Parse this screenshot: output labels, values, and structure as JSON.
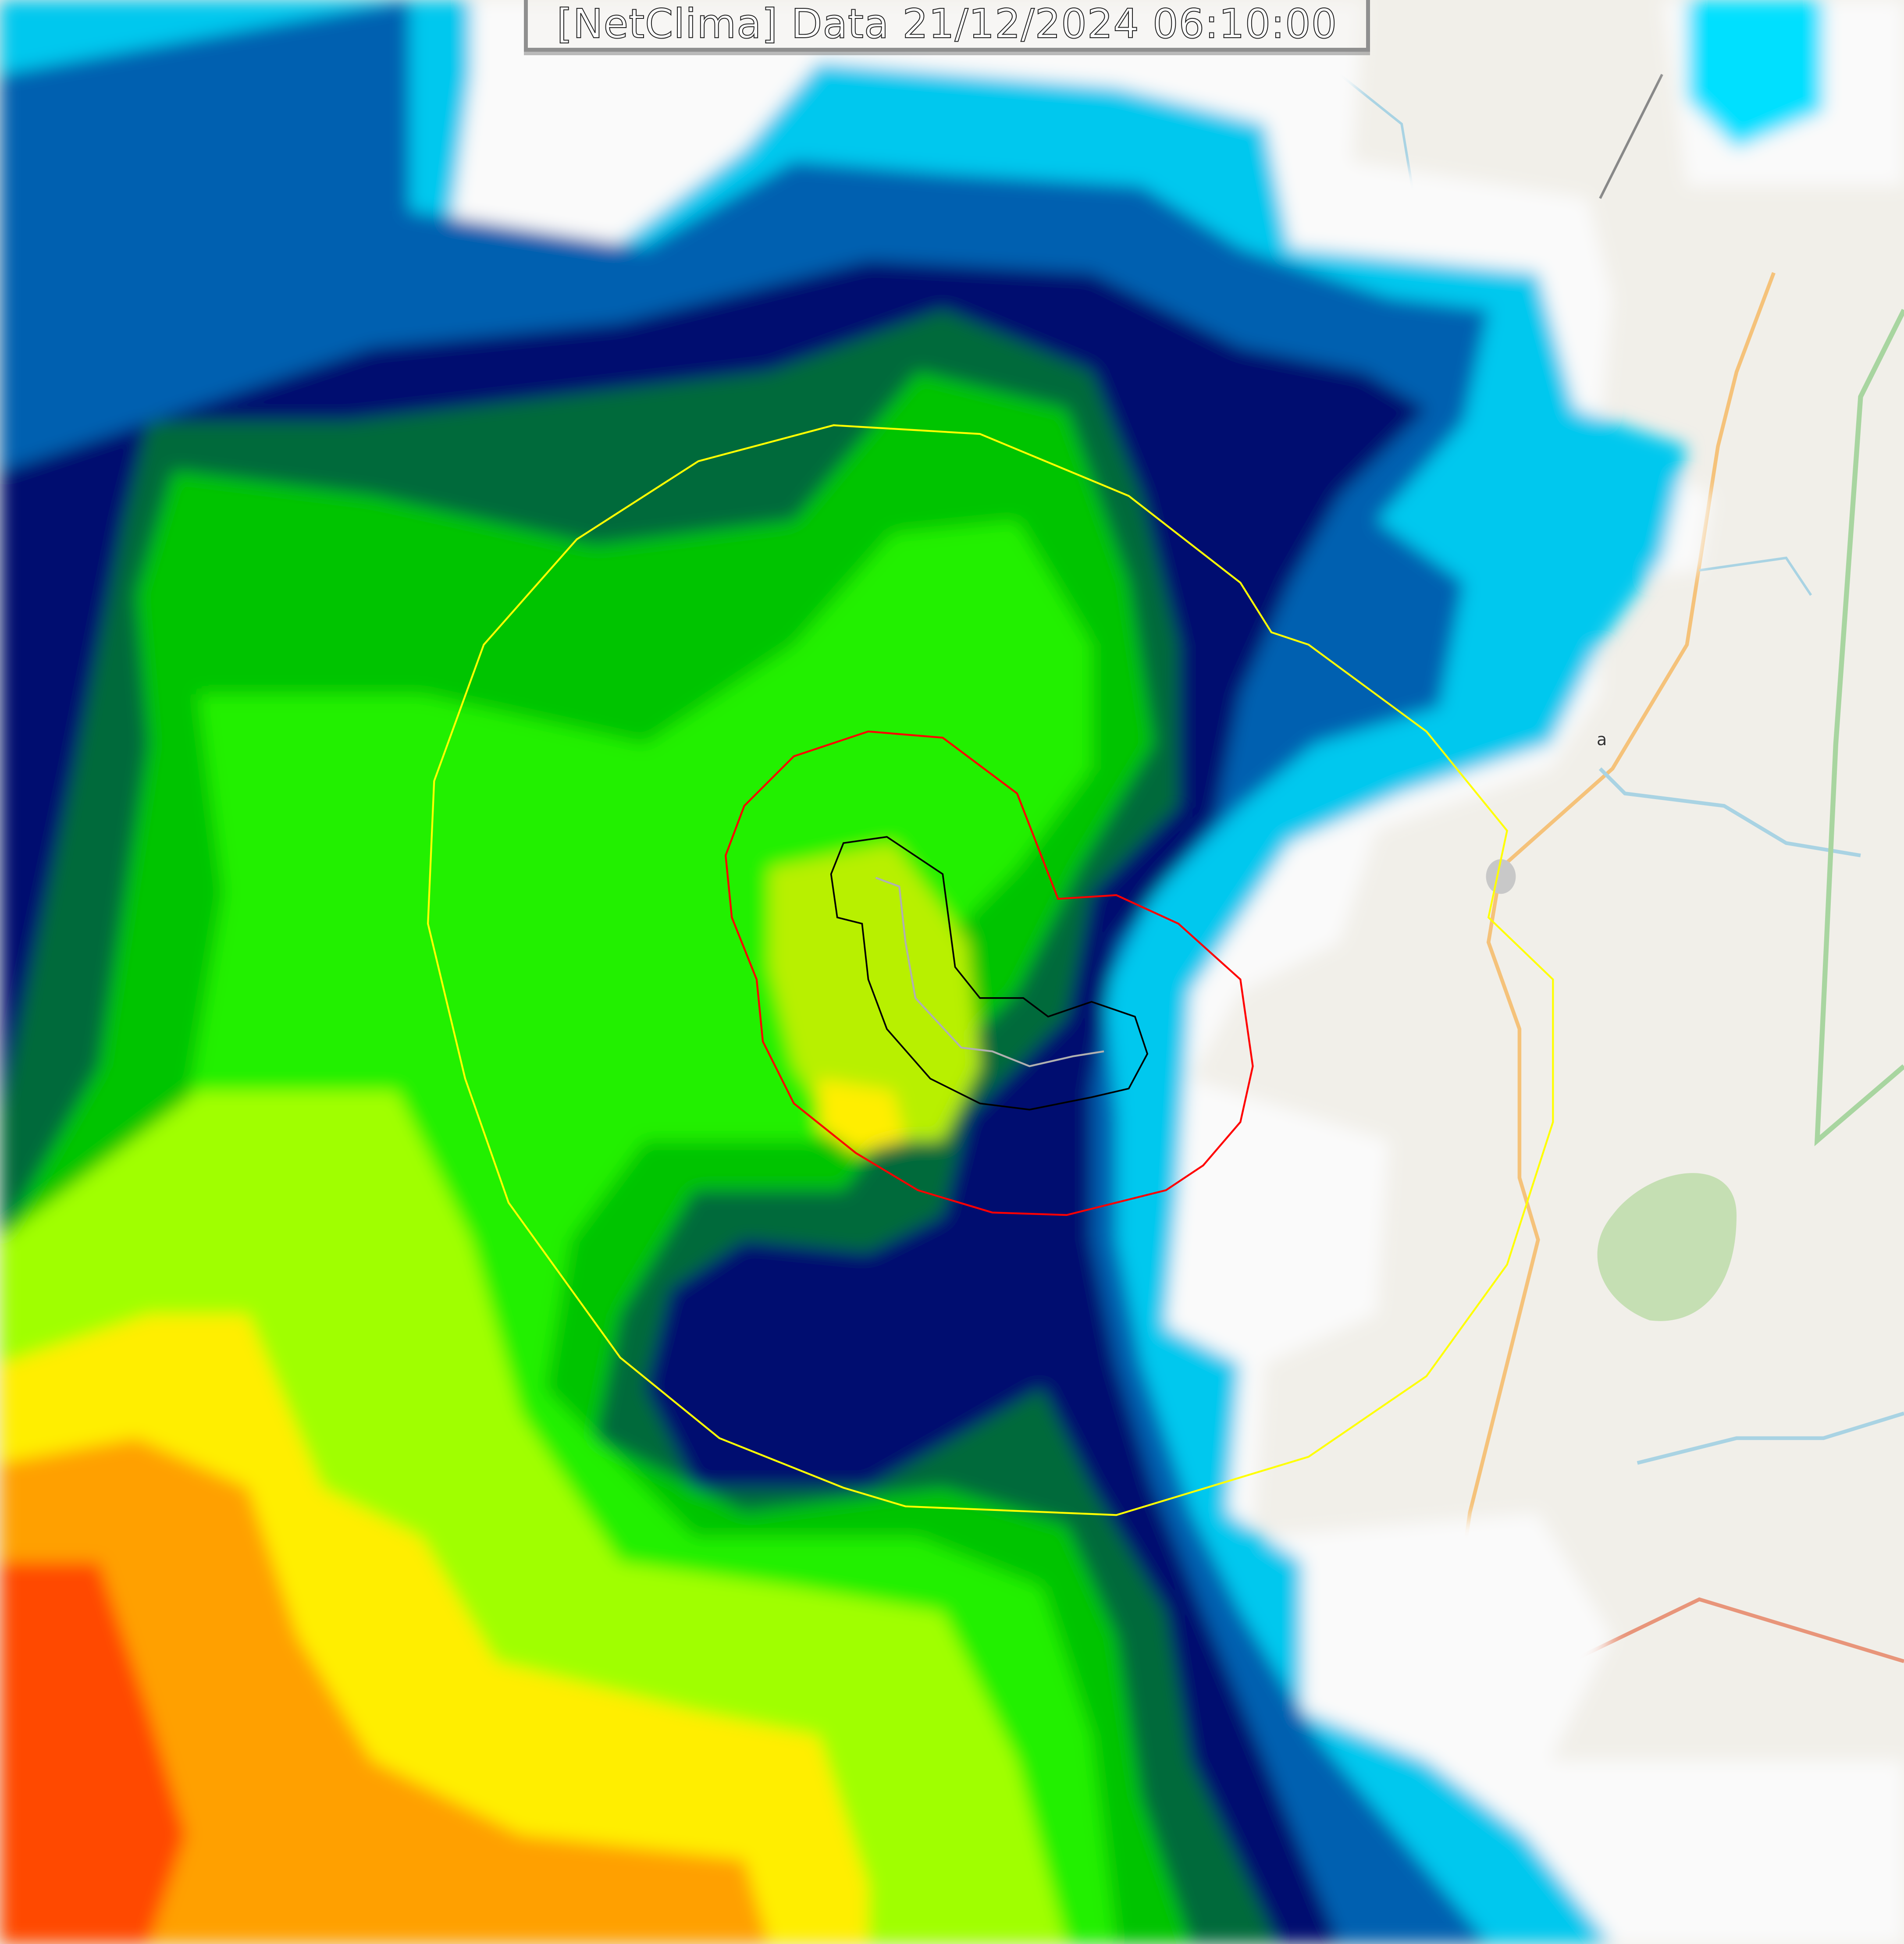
{
  "title": "[NetClima] Data 21/12/2024 06:10:00",
  "map": {
    "place_label_fragment": "a",
    "basemap_color": "#f1efe9",
    "contours": {
      "outer": "#ffff00",
      "middle": "#ff0000",
      "inner": "#000000",
      "track": "#b0b0b0"
    },
    "radar_palette": [
      "#ffffff",
      "#00ffff",
      "#00a0d0",
      "#0050a0",
      "#000060",
      "#005030",
      "#00a000",
      "#00ff00",
      "#80ff00",
      "#ffff00",
      "#ffa000",
      "#ff4000"
    ]
  }
}
